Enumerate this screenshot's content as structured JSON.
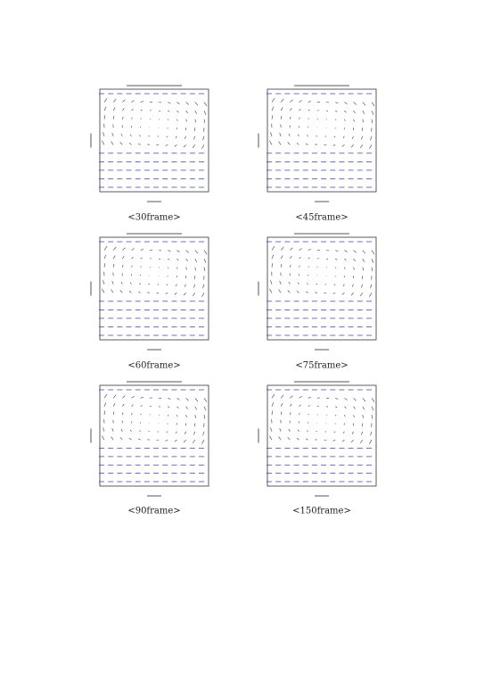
{
  "figures": [
    {
      "caption": "<30frame>"
    },
    {
      "caption": "<45frame>"
    },
    {
      "caption": "<60frame>"
    },
    {
      "caption": "<75frame>"
    },
    {
      "caption": "<90frame>"
    },
    {
      "caption": "<150frame>"
    }
  ]
}
